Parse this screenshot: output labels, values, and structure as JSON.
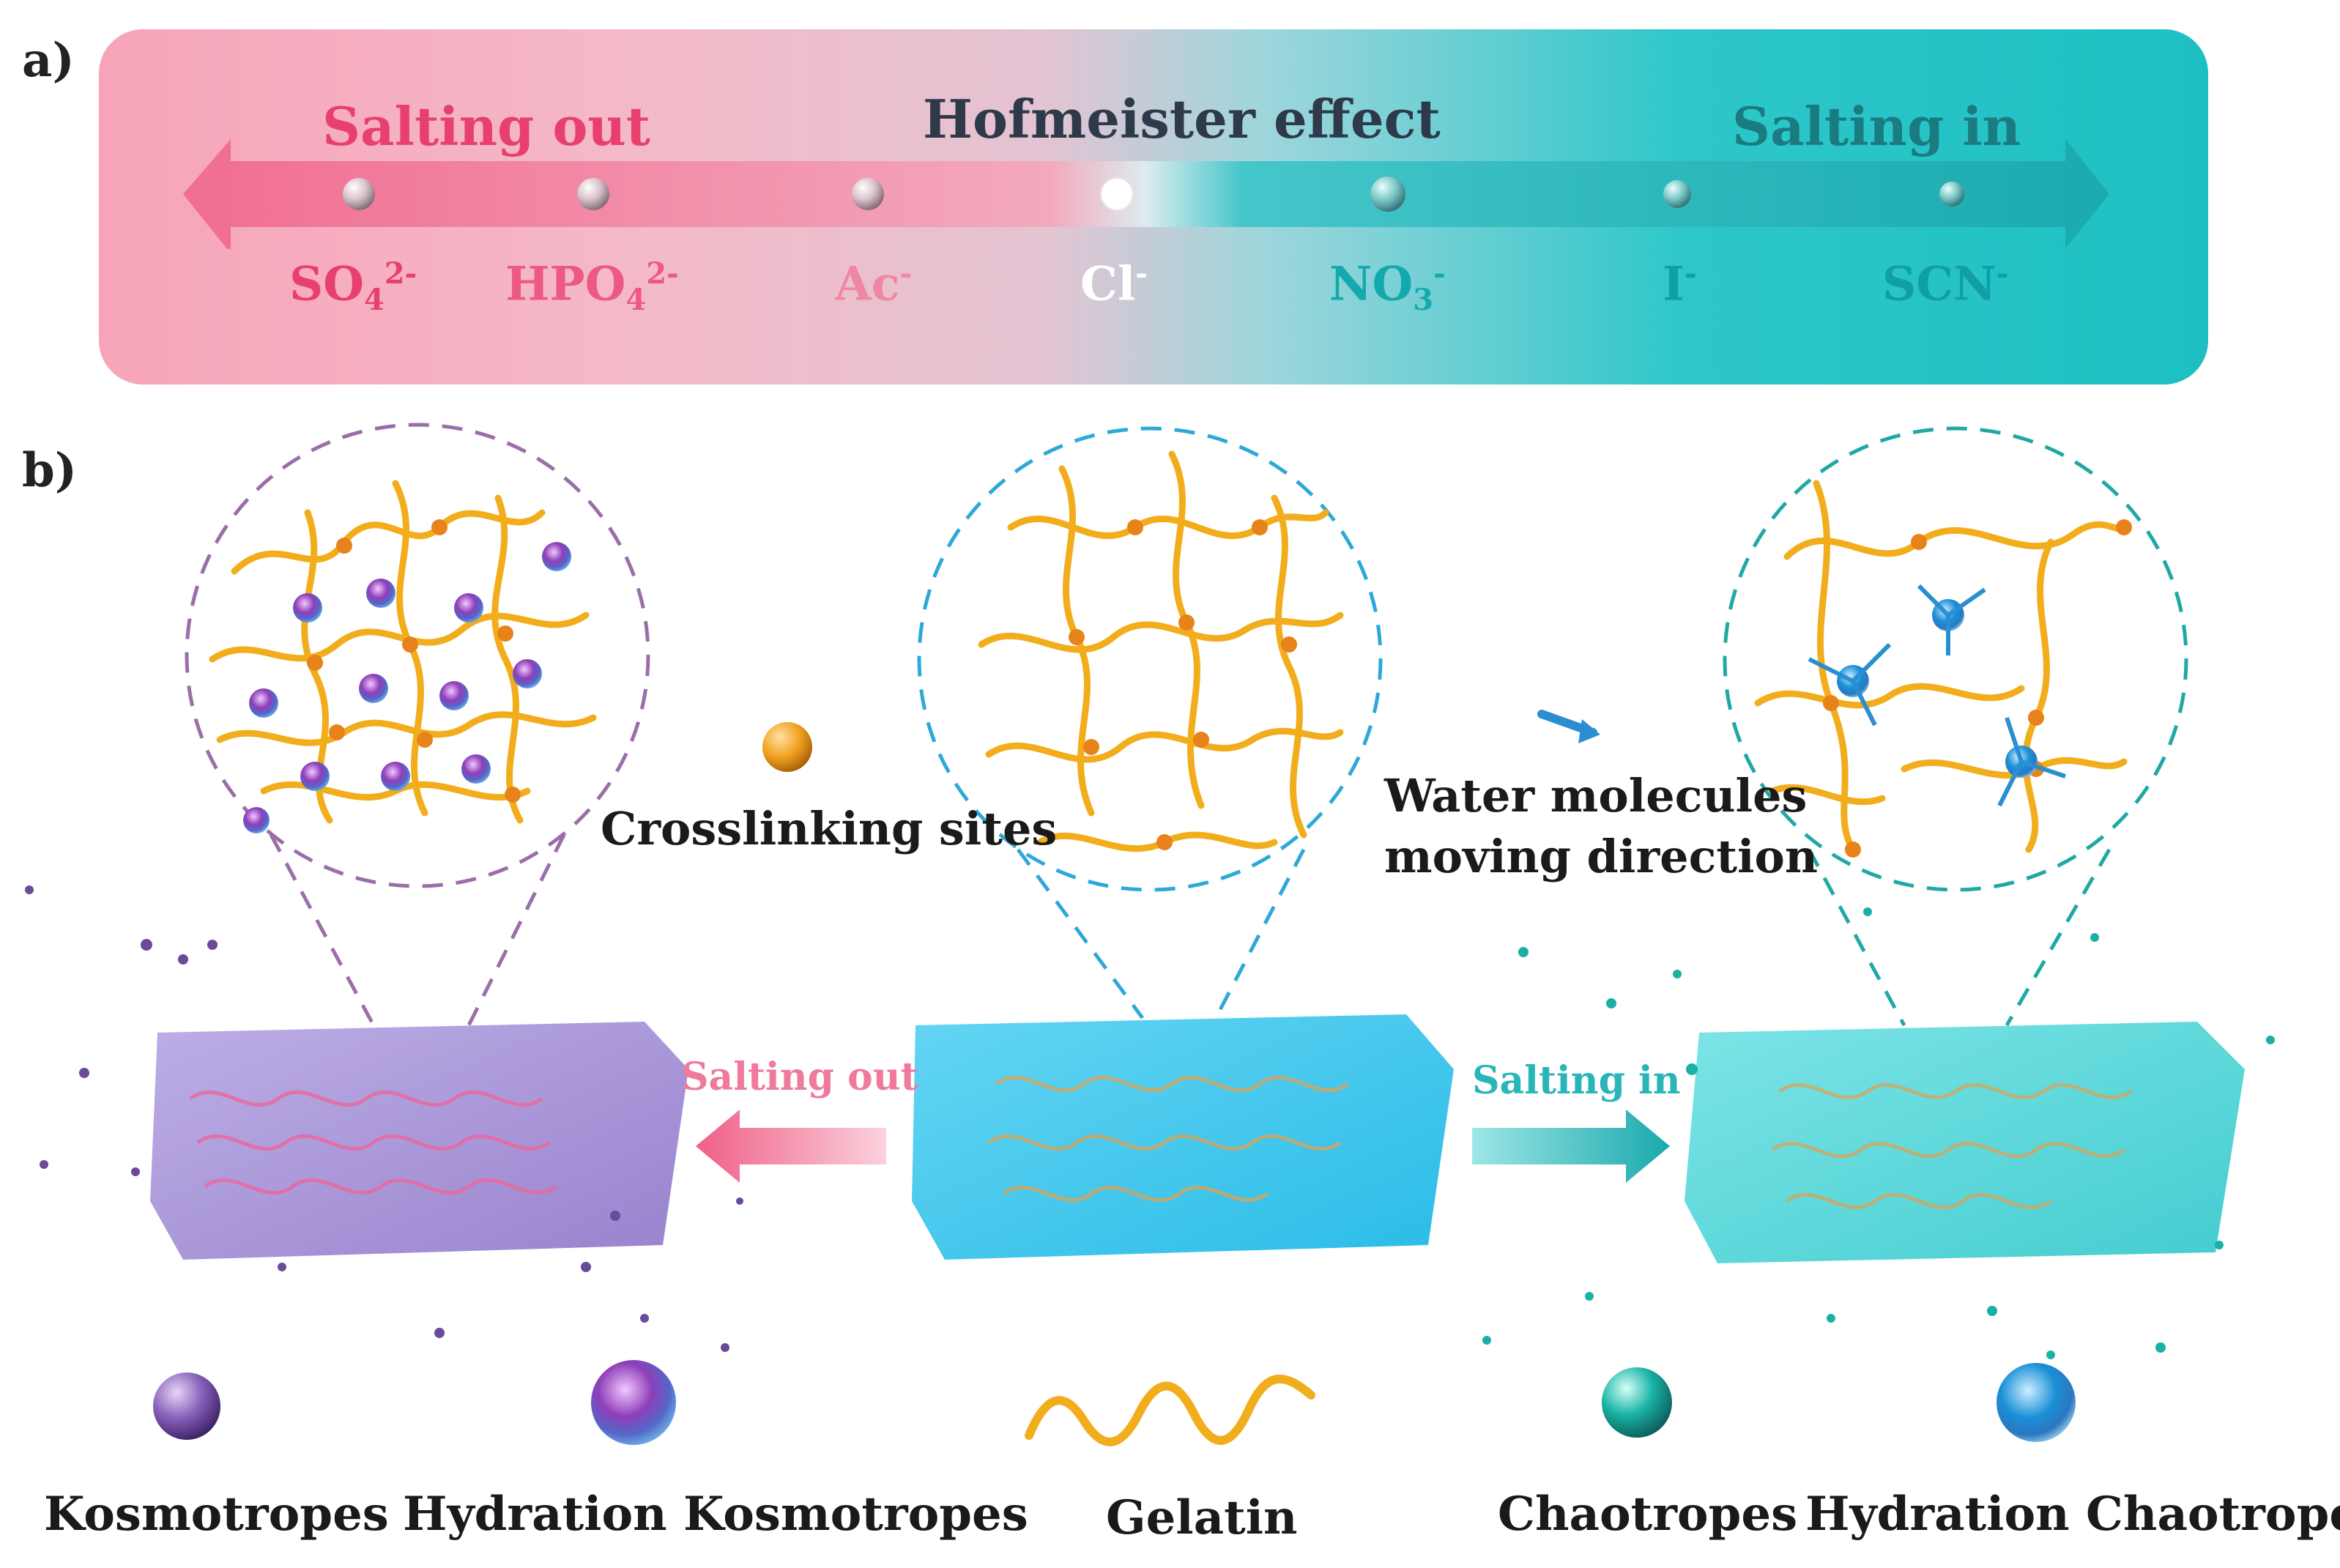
{
  "panel_a": {
    "label": "a)",
    "title": "Hofmeister effect",
    "salting_out": "Salting out",
    "salting_in": "Salting in",
    "ions": [
      {
        "base": "SO",
        "sub": "4",
        "sup": "2-",
        "color": "#e8406e"
      },
      {
        "base": "HPO",
        "sub": "4",
        "sup": "2-",
        "color": "#ec5a84"
      },
      {
        "base": "Ac",
        "sub": "",
        "sup": "-",
        "color": "#ef87a2"
      },
      {
        "base": "Cl",
        "sub": "",
        "sup": "-",
        "color": "#ffffff"
      },
      {
        "base": "NO",
        "sub": "3",
        "sup": "-",
        "color": "#13a9ad"
      },
      {
        "base": "I",
        "sub": "",
        "sup": "-",
        "color": "#0f9fa4"
      },
      {
        "base": "SCN",
        "sub": "",
        "sup": "-",
        "color": "#0f9fa4"
      }
    ]
  },
  "panel_b": {
    "label": "b)",
    "crosslinking_label": "Crosslinking sites",
    "water_label_line1": "Water molecules",
    "water_label_line2": "moving direction",
    "salting_out_label": "Salting out",
    "salting_in_label": "Salting in"
  },
  "legend": {
    "kosmotropes": "Kosmotropes",
    "hydration_kosmotropes": "Hydration Kosmotropes",
    "gelatin": "Gelatin",
    "chaotropes": "Chaotropes",
    "hydration_chaotropes": "Hydration Chaotropes"
  },
  "colors": {
    "pink": "#e8406e",
    "teal": "#12a7ab",
    "dark_title": "#2e3a4a",
    "gelatin": "#f5b320",
    "kosmotrope": "#7a4fb0",
    "chaotrope": "#14a9a0",
    "hydration_chaotrope": "#1a8fd6"
  }
}
